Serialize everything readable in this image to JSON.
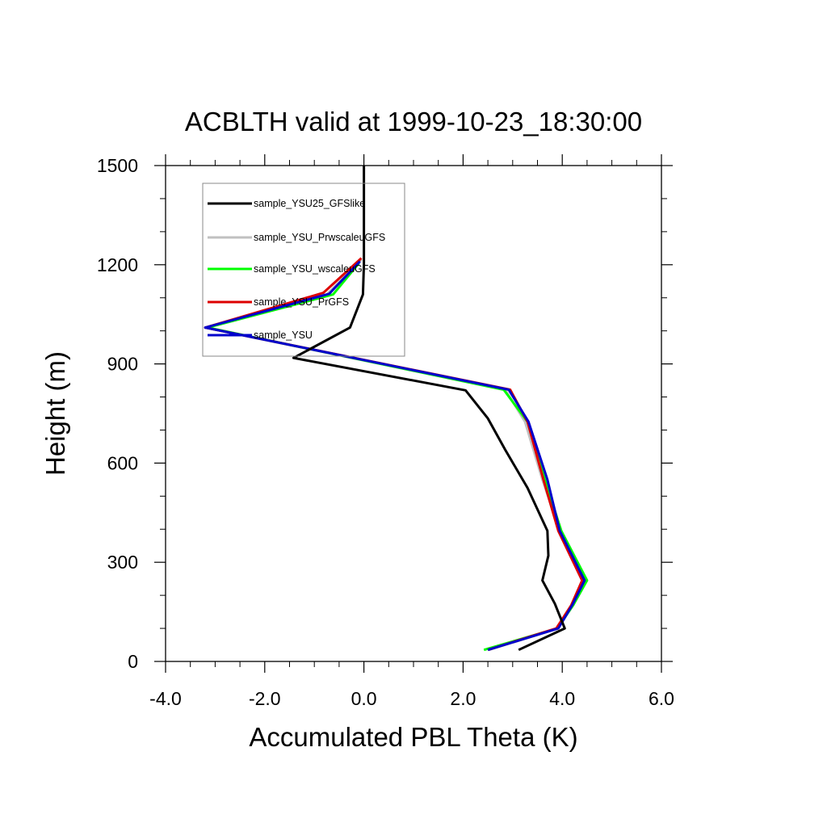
{
  "chart_data": {
    "type": "line",
    "title": "ACBLTH valid at 1999-10-23_18:30:00",
    "xlabel": "Accumulated PBL Theta (K)",
    "ylabel": "Height (m)",
    "xlim": [
      -4.0,
      6.0
    ],
    "ylim": [
      0,
      1500
    ],
    "xticks": [
      -4.0,
      -2.0,
      0.0,
      2.0,
      4.0,
      6.0
    ],
    "xtick_labels": [
      "-4.0",
      "-2.0",
      "0.0",
      "2.0",
      "4.0",
      "6.0"
    ],
    "yticks": [
      0,
      300,
      600,
      900,
      1200,
      1500
    ],
    "ytick_labels": [
      "0",
      "300",
      "600",
      "900",
      "1200",
      "1500"
    ],
    "grid": false,
    "legend_position": "top-left",
    "series": [
      {
        "name": "sample_YSU25_GFSlike",
        "color": "#000000",
        "points": [
          [
            3.12,
            35
          ],
          [
            4.05,
            100
          ],
          [
            3.85,
            175
          ],
          [
            3.6,
            245
          ],
          [
            3.72,
            320
          ],
          [
            3.7,
            395
          ],
          [
            3.3,
            525
          ],
          [
            2.85,
            640
          ],
          [
            2.5,
            735
          ],
          [
            2.05,
            820
          ],
          [
            -1.42,
            918
          ],
          [
            -0.28,
            1010
          ],
          [
            -0.02,
            1110
          ],
          [
            0.0,
            1200
          ],
          [
            0.0,
            1300
          ],
          [
            0.0,
            1500
          ]
        ]
      },
      {
        "name": "sample_YSU_PrwscaleuGFS",
        "color": "#c0c0c0",
        "points": [
          [
            2.52,
            35
          ],
          [
            3.92,
            100
          ],
          [
            4.2,
            170
          ],
          [
            4.45,
            245
          ],
          [
            3.95,
            395
          ],
          [
            3.6,
            550
          ],
          [
            3.25,
            725
          ],
          [
            2.85,
            822
          ],
          [
            -3.2,
            1010
          ],
          [
            -0.75,
            1110
          ],
          [
            -0.05,
            1215
          ]
        ]
      },
      {
        "name": "sample_YSU_wscaleuGFS",
        "color": "#00ff00",
        "points": [
          [
            2.42,
            35
          ],
          [
            3.9,
            100
          ],
          [
            4.22,
            170
          ],
          [
            4.5,
            245
          ],
          [
            3.98,
            395
          ],
          [
            3.65,
            550
          ],
          [
            3.3,
            725
          ],
          [
            2.82,
            822
          ],
          [
            -3.15,
            1010
          ],
          [
            -0.62,
            1110
          ],
          [
            -0.1,
            1205
          ]
        ]
      },
      {
        "name": "sample_YSU_PrGFS",
        "color": "#dd0000",
        "points": [
          [
            2.5,
            35
          ],
          [
            3.88,
            100
          ],
          [
            4.18,
            170
          ],
          [
            4.4,
            245
          ],
          [
            3.92,
            395
          ],
          [
            3.62,
            550
          ],
          [
            3.3,
            725
          ],
          [
            2.95,
            822
          ],
          [
            -3.2,
            1010
          ],
          [
            -0.82,
            1115
          ],
          [
            -0.05,
            1220
          ]
        ]
      },
      {
        "name": "sample_YSU",
        "color": "#0000cc",
        "points": [
          [
            2.5,
            35
          ],
          [
            3.92,
            100
          ],
          [
            4.2,
            170
          ],
          [
            4.45,
            245
          ],
          [
            3.95,
            395
          ],
          [
            3.7,
            550
          ],
          [
            3.32,
            725
          ],
          [
            2.92,
            822
          ],
          [
            -3.2,
            1010
          ],
          [
            -0.7,
            1112
          ],
          [
            -0.08,
            1210
          ]
        ]
      }
    ],
    "legend_order": [
      0,
      1,
      2,
      3,
      4
    ]
  }
}
